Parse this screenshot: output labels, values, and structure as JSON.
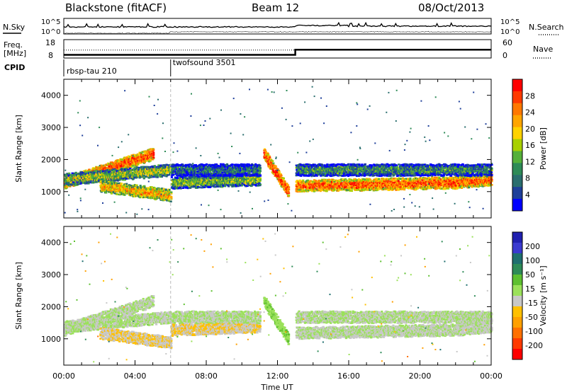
{
  "header": {
    "title_left": "Blackstone (fitACF)",
    "title_mid": "Beam 12",
    "title_right": "08/Oct/2013"
  },
  "aux": {
    "nsky_label": "N.Sky",
    "nsearch_label": "N.Search",
    "freq_label_1": "Freq.",
    "freq_label_2": "[MHz]",
    "nave_label": "Nave",
    "cpid_label": "CPID",
    "noise_ticks": [
      "10^5",
      "10^0"
    ],
    "freq_ticks": [
      "18",
      "8"
    ],
    "nave_ticks": [
      "60",
      "0"
    ],
    "cpid_segments": [
      {
        "name": "rbsp-tau 210",
        "start_hour": 0
      },
      {
        "name": "twofsound 3501",
        "start_hour": 6
      }
    ]
  },
  "xaxis": {
    "label": "Time UT",
    "ticks": [
      "00:00",
      "04:00",
      "08:00",
      "12:00",
      "16:00",
      "20:00",
      "00:00"
    ]
  },
  "power_panel": {
    "ylabel": "Slant Range [km]",
    "yticks": [
      "4000",
      "3000",
      "2000",
      "1000"
    ],
    "cbar_label": "Power [dB]",
    "cbar_ticks": [
      "28",
      "24",
      "20",
      "16",
      "12",
      "8",
      "4"
    ],
    "cbar_colors": [
      "#ff0000",
      "#ff3a00",
      "#ff7800",
      "#ffa500",
      "#ffd200",
      "#a8d000",
      "#55b03a",
      "#2e8b57",
      "#2a6e6e",
      "#1e3f9a",
      "#0000ff"
    ]
  },
  "velocity_panel": {
    "ylabel": "Slant Range [km]",
    "yticks": [
      "4000",
      "3000",
      "2000",
      "1000"
    ],
    "cbar_label": "Velocity [m s⁻¹]",
    "cbar_ticks": [
      "200",
      "100",
      "50",
      "15",
      "-15",
      "-50",
      "-100",
      "-200"
    ],
    "cbar_colors": [
      "#2020b0",
      "#3a3ad0",
      "#1f6f6f",
      "#2e8b57",
      "#5ec030",
      "#9be15a",
      "#c8c8c8",
      "#ffc000",
      "#ffa000",
      "#ff7000",
      "#ff3a00",
      "#ff0000"
    ]
  },
  "chart_data": {
    "type": "heatmap",
    "title": "Blackstone (fitACF)  Beam 12  08/Oct/2013",
    "xlabel": "Time UT",
    "ylabel": "Slant Range [km]",
    "xlim_hours": [
      0,
      24
    ],
    "ylim_km": [
      180,
      4500
    ],
    "panels": [
      "Power [dB]",
      "Velocity [m s⁻¹]"
    ],
    "power_range_db": [
      0,
      30
    ],
    "velocity_range": [
      -250,
      250
    ],
    "frequency_mhz": [
      {
        "from_hour": 0,
        "to_hour": 13,
        "value": 10.5
      },
      {
        "from_hour": 13,
        "to_hour": 24,
        "value": 14.5
      }
    ],
    "nave": [
      {
        "from_hour": 0,
        "to_hour": 24,
        "value": 28
      }
    ],
    "scatter_bands": [
      {
        "start_hour": 0,
        "end_hour": 5,
        "range_start_km": 1300,
        "range_end_km": 2200,
        "power_db": 26,
        "velocity": -5
      },
      {
        "start_hour": 0,
        "end_hour": 6,
        "range_start_km": 1400,
        "range_end_km": 1700,
        "power_db": 14,
        "velocity": 0
      },
      {
        "start_hour": 2,
        "end_hour": 6,
        "range_start_km": 1200,
        "range_end_km": 900,
        "power_db": 20,
        "velocity": -40
      },
      {
        "start_hour": 6,
        "end_hour": 11,
        "range_start_km": 1300,
        "range_end_km": 1400,
        "power_db": 12,
        "velocity": -40
      },
      {
        "start_hour": 6,
        "end_hour": 11,
        "range_start_km": 1700,
        "range_end_km": 1700,
        "power_db": 6,
        "velocity": 0
      },
      {
        "start_hour": 11.2,
        "end_hour": 12.6,
        "range_start_km": 2200,
        "range_end_km": 1000,
        "power_db": 27,
        "velocity": 30
      },
      {
        "start_hour": 13,
        "end_hour": 22,
        "range_start_km": 1200,
        "range_end_km": 1300,
        "power_db": 25,
        "velocity": -5
      },
      {
        "start_hour": 22,
        "end_hour": 24,
        "range_start_km": 1300,
        "range_end_km": 1400,
        "power_db": 24,
        "velocity": -10
      },
      {
        "start_hour": 13,
        "end_hour": 24,
        "range_start_km": 1700,
        "range_end_km": 1700,
        "power_db": 8,
        "velocity": 0
      }
    ]
  }
}
